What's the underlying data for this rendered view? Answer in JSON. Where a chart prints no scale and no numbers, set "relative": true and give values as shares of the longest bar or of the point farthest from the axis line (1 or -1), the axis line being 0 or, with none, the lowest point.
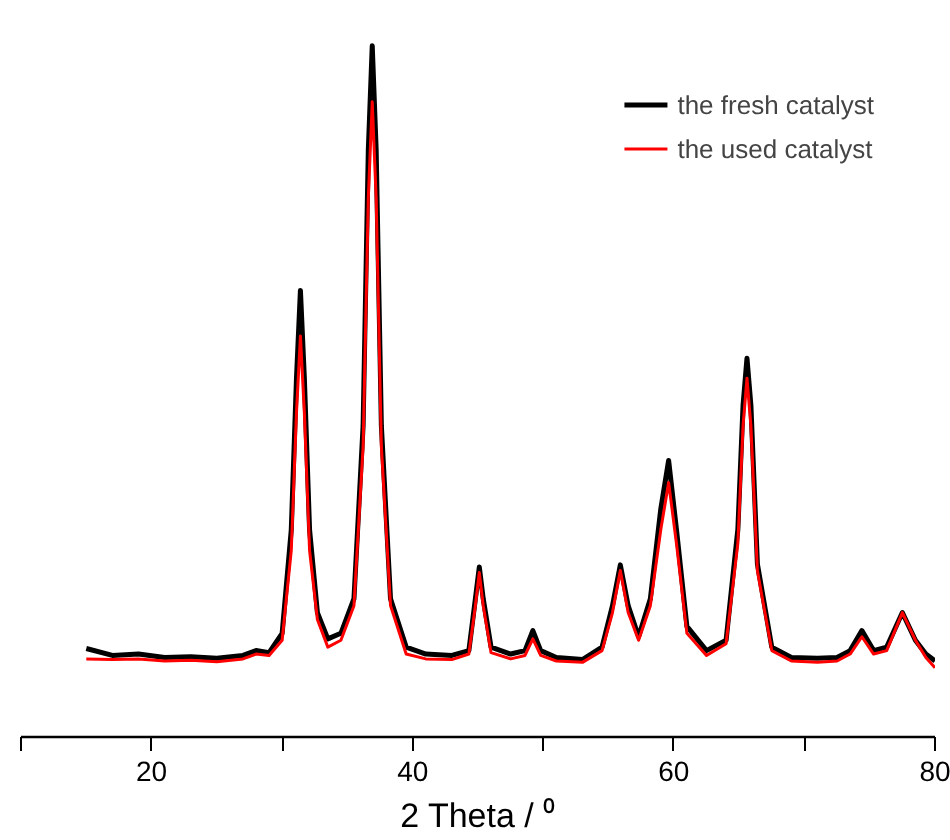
{
  "chart_data": {
    "type": "line",
    "relative": true,
    "xlabel": "2 Theta / ⁰",
    "xlim": [
      10,
      80
    ],
    "xticks": [
      {
        "value": 10,
        "label": null
      },
      20,
      {
        "value": 30,
        "label": null
      },
      40,
      {
        "value": 50,
        "label": null
      },
      60,
      {
        "value": 70,
        "label": null
      },
      80
    ],
    "x": [
      15,
      17,
      19,
      21,
      23,
      25,
      27,
      28,
      29,
      30,
      30.7,
      31.1,
      31.4,
      31.7,
      32.1,
      32.7,
      33.5,
      34.5,
      35.5,
      36.2,
      36.6,
      36.9,
      37.2,
      37.6,
      38.3,
      39.5,
      41,
      43,
      44.3,
      44.8,
      45.1,
      45.4,
      46,
      47.5,
      48.6,
      49.2,
      49.8,
      51,
      53,
      54.5,
      55.3,
      55.9,
      56.5,
      57.3,
      58.2,
      59.0,
      59.6,
      60.2,
      61,
      62.5,
      64,
      64.9,
      65.3,
      65.6,
      65.9,
      66.4,
      67.5,
      69,
      71,
      72.5,
      73.5,
      74.4,
      75.3,
      76.3,
      77.5,
      78.5,
      79.3,
      80
    ],
    "series": [
      {
        "name": "the fresh catalyst",
        "color": "#000000",
        "values": [
          0.128,
          0.118,
          0.12,
          0.115,
          0.116,
          0.114,
          0.118,
          0.125,
          0.122,
          0.15,
          0.3,
          0.52,
          0.646,
          0.52,
          0.3,
          0.18,
          0.142,
          0.15,
          0.2,
          0.45,
          0.85,
          1.0,
          0.85,
          0.45,
          0.2,
          0.13,
          0.12,
          0.118,
          0.125,
          0.2,
          0.246,
          0.2,
          0.13,
          0.12,
          0.125,
          0.154,
          0.125,
          0.115,
          0.112,
          0.13,
          0.19,
          0.249,
          0.19,
          0.145,
          0.2,
          0.33,
          0.4,
          0.3,
          0.16,
          0.125,
          0.14,
          0.3,
          0.48,
          0.548,
          0.48,
          0.25,
          0.13,
          0.115,
          0.114,
          0.115,
          0.125,
          0.154,
          0.125,
          0.13,
          0.18,
          0.14,
          0.12,
          0.11
        ]
      },
      {
        "name": "the used catalyst",
        "color": "#ff0000",
        "values": [
          0.113,
          0.112,
          0.113,
          0.11,
          0.111,
          0.109,
          0.113,
          0.12,
          0.118,
          0.14,
          0.27,
          0.47,
          0.58,
          0.47,
          0.27,
          0.17,
          0.13,
          0.14,
          0.19,
          0.42,
          0.78,
          0.919,
          0.78,
          0.42,
          0.19,
          0.12,
          0.113,
          0.112,
          0.12,
          0.19,
          0.238,
          0.19,
          0.122,
          0.113,
          0.118,
          0.142,
          0.118,
          0.11,
          0.108,
          0.125,
          0.18,
          0.241,
          0.18,
          0.14,
          0.19,
          0.3,
          0.368,
          0.28,
          0.15,
          0.118,
          0.135,
          0.28,
          0.45,
          0.519,
          0.45,
          0.24,
          0.125,
          0.11,
          0.108,
          0.11,
          0.12,
          0.145,
          0.12,
          0.125,
          0.18,
          0.14,
          0.115,
          0.1
        ]
      }
    ],
    "legend": "top right",
    "grid": false,
    "line_style": "solid",
    "marker": "none"
  }
}
